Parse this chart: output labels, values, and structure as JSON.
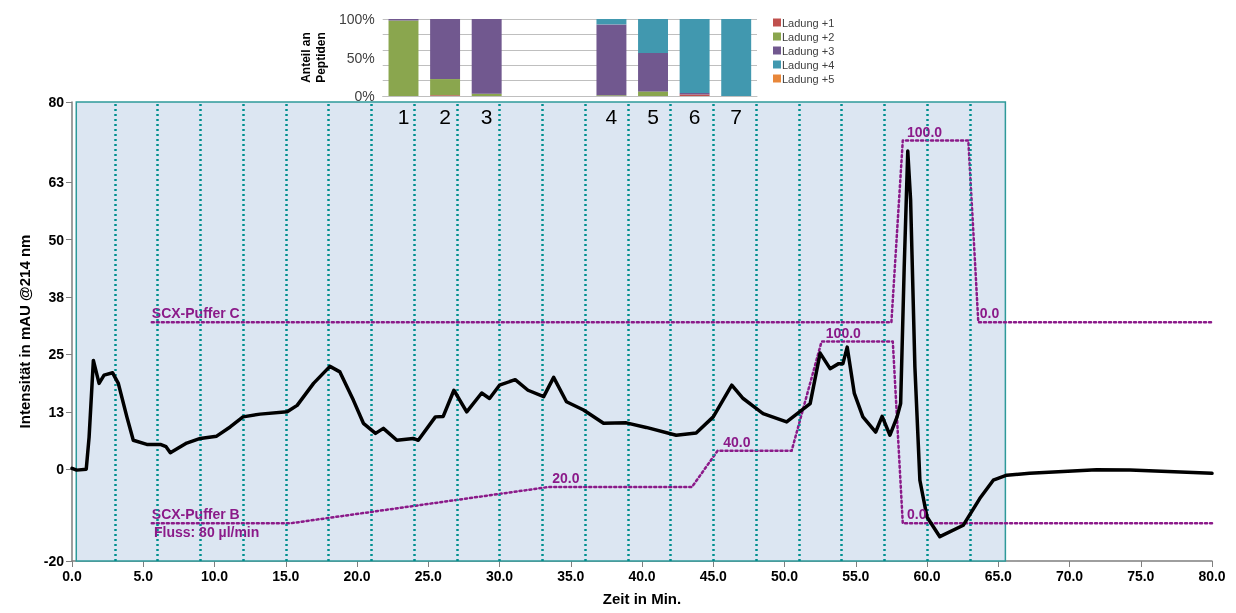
{
  "chart_data": [
    {
      "type": "line",
      "xlabel": "Zeit in Min.",
      "ylabel": "Intensität in mAU @214 nm",
      "xlim": [
        0,
        80
      ],
      "xticks": [
        {
          "value": 0,
          "label": "0.0"
        },
        {
          "value": 5,
          "label": "5.0"
        },
        {
          "value": 10,
          "label": "10.0"
        },
        {
          "value": 15,
          "label": "15.0"
        },
        {
          "value": 20,
          "label": "20.0"
        },
        {
          "value": 25,
          "label": "25.0"
        },
        {
          "value": 30,
          "label": "30.0"
        },
        {
          "value": 35,
          "label": "35.0"
        },
        {
          "value": 40,
          "label": "40.0"
        },
        {
          "value": 45,
          "label": "45.0"
        },
        {
          "value": 50,
          "label": "50.0"
        },
        {
          "value": 55,
          "label": "55.0"
        },
        {
          "value": 60,
          "label": "60.0"
        },
        {
          "value": 65,
          "label": "65.0"
        },
        {
          "value": 70,
          "label": "70.0"
        },
        {
          "value": 75,
          "label": "75.0"
        },
        {
          "value": 80,
          "label": "80.0"
        }
      ],
      "ylim": [
        -20,
        80
      ],
      "yticks": [
        -20,
        0,
        {
          "value": 12.5,
          "label": "13"
        },
        25,
        {
          "value": 37.5,
          "label": "38"
        },
        50,
        {
          "value": 62.5,
          "label": "63"
        },
        80
      ],
      "series": [
        {
          "color": "#000000",
          "line_style": "solid",
          "x": [
            0,
            0.33,
            1.0,
            1.2,
            1.5,
            1.9,
            2.25,
            2.85,
            3.25,
            3.85,
            4.3,
            5.25,
            6.2,
            6.6,
            6.9,
            8.05,
            9.0,
            10.15,
            11.1,
            12.0,
            13.2,
            15.1,
            15.8,
            16.95,
            18.1,
            18.8,
            19.75,
            20.45,
            21.3,
            21.85,
            22.8,
            23.95,
            24.3,
            25.5,
            26.05,
            26.8,
            27.7,
            28.75,
            29.3,
            30.0,
            31.1,
            32.0,
            33.1,
            33.8,
            34.7,
            35.9,
            37.3,
            38.9,
            40.3,
            42.4,
            43.8,
            45.0,
            46.3,
            47.1,
            48.5,
            50.15,
            51.8,
            52.5,
            53.2,
            53.8,
            54.1,
            54.4,
            54.9,
            55.5,
            56.4,
            56.85,
            57.4,
            57.9,
            58.15,
            58.4,
            58.65,
            58.85,
            59.15,
            59.5,
            60.0,
            60.9,
            62.55,
            63.7,
            64.65,
            65.6,
            67.2,
            71.9,
            74.25,
            80
          ],
          "values": [
            0.2,
            -0.2,
            0,
            7,
            23.7,
            18.7,
            20.5,
            21,
            18.7,
            11.4,
            6.3,
            5.4,
            5.4,
            4.9,
            3.6,
            5.7,
            6.7,
            7.2,
            9.2,
            11.4,
            12,
            12.5,
            13.9,
            18.7,
            22.4,
            21.2,
            15,
            10,
            7.8,
            8.9,
            6.3,
            6.7,
            6.3,
            11.4,
            11.5,
            17.2,
            12.5,
            16.6,
            15.4,
            18.3,
            19.5,
            17.2,
            15.8,
            20,
            14.7,
            12.9,
            10,
            10.1,
            9.1,
            7.4,
            7.9,
            11.4,
            18.3,
            15.4,
            12.1,
            10.3,
            14.3,
            25.3,
            21.9,
            23,
            23,
            26.6,
            16.5,
            11.4,
            8.1,
            11.5,
            7.4,
            11.4,
            14.3,
            44,
            69.3,
            58.6,
            22.3,
            -2.4,
            -10.4,
            -14.7,
            -12.2,
            -6.4,
            -2.4,
            -1.3,
            -0.9,
            -0.1,
            -0.2,
            -0.9
          ]
        },
        {
          "name": "SCX-Puffer C",
          "color": "#8b1a89",
          "line_style": "dotted",
          "x": [
            5.6,
            57.5,
            58.3,
            62.9,
            63.6,
            80
          ],
          "values": [
            32,
            32,
            71.6,
            71.6,
            32,
            32
          ]
        },
        {
          "name": "SCX-Puffer B",
          "color": "#8b1a89",
          "line_style": "dotted",
          "x": [
            5.6,
            15.3,
            33.4,
            43.5,
            45.3,
            50.5,
            52.6,
            57.6,
            58.3,
            80
          ],
          "values": [
            -11.8,
            -11.8,
            -3.9,
            -3.9,
            4,
            4,
            27.8,
            27.8,
            -11.8,
            -11.8
          ]
        }
      ],
      "annotations": [
        "Fluss: 80 µl/min",
        {
          "text": "20.0",
          "x": 33.7,
          "y": -3.9
        },
        {
          "text": "40.0",
          "x": 45.7,
          "y": 4
        },
        {
          "text": "100.0",
          "x": 52.9,
          "y": 27.8
        },
        {
          "text": "100.0",
          "x": 58.6,
          "y": 71.6
        },
        {
          "text": "0.0",
          "x": 58.6,
          "y": -11.8
        },
        {
          "text": "0.0",
          "x": 63.7,
          "y": 32
        }
      ],
      "bands": [
        {
          "axis": "x",
          "from": 0.3,
          "to": 65.5,
          "color": "#dce6f2"
        }
      ],
      "ref_lines": [
        {
          "axis": "x",
          "value": 3,
          "color": "#009090",
          "line_style": "dotted"
        },
        {
          "axis": "x",
          "value": 6,
          "color": "#009090",
          "line_style": "dotted"
        },
        {
          "axis": "x",
          "value": 9,
          "color": "#009090",
          "line_style": "dotted"
        },
        {
          "axis": "x",
          "value": 12,
          "color": "#009090",
          "line_style": "dotted"
        },
        {
          "axis": "x",
          "value": 15,
          "color": "#009090",
          "line_style": "dotted"
        },
        {
          "axis": "x",
          "value": 18,
          "color": "#009090",
          "line_style": "dotted"
        },
        {
          "axis": "x",
          "value": 21,
          "color": "#009090",
          "line_style": "dotted"
        },
        {
          "axis": "x",
          "value": 24,
          "color": "#009090",
          "line_style": "dotted"
        },
        {
          "axis": "x",
          "value": 27,
          "color": "#009090",
          "line_style": "dotted"
        },
        {
          "axis": "x",
          "value": 30,
          "color": "#009090",
          "line_style": "dotted"
        },
        {
          "axis": "x",
          "value": 33,
          "color": "#009090",
          "line_style": "dotted"
        },
        {
          "axis": "x",
          "value": 36,
          "color": "#009090",
          "line_style": "dotted"
        },
        {
          "axis": "x",
          "value": 39,
          "color": "#009090",
          "line_style": "dotted"
        },
        {
          "axis": "x",
          "value": 42,
          "color": "#009090",
          "line_style": "dotted"
        },
        {
          "axis": "x",
          "value": 45,
          "color": "#009090",
          "line_style": "dotted"
        },
        {
          "axis": "x",
          "value": 48,
          "color": "#009090",
          "line_style": "dotted"
        },
        {
          "axis": "x",
          "value": 51,
          "color": "#009090",
          "line_style": "dotted"
        },
        {
          "axis": "x",
          "value": 54,
          "color": "#009090",
          "line_style": "dotted"
        },
        {
          "axis": "x",
          "value": 57,
          "color": "#009090",
          "line_style": "dotted"
        },
        {
          "axis": "x",
          "value": 60,
          "color": "#009090",
          "line_style": "dotted"
        },
        {
          "axis": "x",
          "value": 63,
          "color": "#009090",
          "line_style": "dotted"
        }
      ]
    },
    {
      "type": "bar",
      "stacked": true,
      "ylabel": "Anteil an Peptiden",
      "legend": "right",
      "grid": "y",
      "categories": [
        "1",
        "2",
        "3",
        null,
        null,
        "4",
        "5",
        "6",
        "7"
      ],
      "ylim": [
        0,
        100
      ],
      "yticks": [
        {
          "value": 0,
          "label": "0%"
        },
        {
          "value": 50,
          "label": "50%"
        },
        {
          "value": 100,
          "label": "100%"
        }
      ],
      "series": [
        {
          "name": "Ladung +1",
          "color": "#c0504d",
          "values": [
            0,
            1,
            0,
            null,
            null,
            0,
            0,
            2,
            0
          ]
        },
        {
          "name": "Ladung +2",
          "color": "#8aa64e",
          "values": [
            98,
            21,
            3,
            null,
            null,
            1,
            6,
            0,
            0
          ]
        },
        {
          "name": "Ladung +3",
          "color": "#71588f",
          "values": [
            2,
            78,
            97,
            null,
            null,
            92,
            50,
            2,
            0
          ]
        },
        {
          "name": "Ladung +4",
          "color": "#4198af",
          "values": [
            0,
            0,
            0,
            null,
            null,
            7,
            44,
            96,
            100
          ]
        },
        {
          "name": "Ladung +5",
          "color": "#e8873a",
          "values": [
            0,
            0,
            0,
            null,
            null,
            0,
            0,
            0,
            0
          ]
        }
      ]
    }
  ]
}
